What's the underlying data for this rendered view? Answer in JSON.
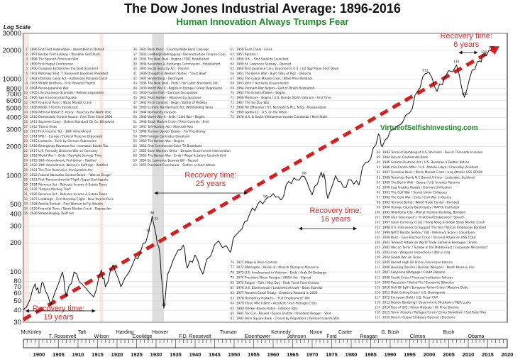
{
  "chart_data": {
    "type": "line",
    "title": "The Dow Jones Industrial Average: 1896-2016",
    "subtitle": "Human Innovation Always Trumps Fear",
    "ylabel": "Log Scale",
    "yscale": "log",
    "ylim": [
      30,
      30000
    ],
    "xlim": [
      1896,
      2020
    ],
    "yticks": [
      30,
      40,
      50,
      60,
      70,
      80,
      100,
      200,
      300,
      400,
      500,
      1000,
      2000,
      3000,
      4000,
      5000,
      6000,
      7000,
      8000,
      10000,
      20000,
      30000
    ],
    "xticks": [
      1900,
      1905,
      1910,
      1915,
      1920,
      1925,
      1930,
      1935,
      1940,
      1945,
      1950,
      1955,
      1960,
      1965,
      1970,
      1975,
      1980,
      1985,
      1990,
      1995,
      2000,
      2005,
      2010,
      2015,
      2020
    ],
    "series": [
      {
        "name": "DJIA",
        "color": "#111111",
        "x": [
          1896,
          1897,
          1899,
          1900,
          1901,
          1903,
          1906,
          1907,
          1909,
          1911,
          1914,
          1916,
          1917,
          1919,
          1921,
          1924,
          1926,
          1928,
          1929,
          1930,
          1931,
          1932,
          1933,
          1935,
          1937,
          1938,
          1940,
          1942,
          1943,
          1946,
          1949,
          1950,
          1952,
          1954,
          1956,
          1958,
          1960,
          1962,
          1964,
          1966,
          1968,
          1970,
          1972,
          1973,
          1974,
          1976,
          1978,
          1980,
          1982,
          1983,
          1985,
          1987,
          1988,
          1990,
          1992,
          1995,
          1997,
          1999,
          2000,
          2002,
          2004,
          2007,
          2009,
          2011,
          2013,
          2014,
          2016
        ],
        "y": [
          40,
          45,
          75,
          60,
          78,
          45,
          100,
          55,
          100,
          75,
          55,
          105,
          70,
          118,
          70,
          120,
          160,
          250,
          380,
          240,
          150,
          42,
          95,
          150,
          190,
          110,
          150,
          95,
          135,
          210,
          160,
          230,
          280,
          400,
          500,
          560,
          650,
          560,
          870,
          900,
          980,
          630,
          1000,
          1050,
          580,
          1000,
          760,
          900,
          800,
          1250,
          1500,
          2700,
          2000,
          2900,
          3300,
          4500,
          7500,
          11500,
          11700,
          7500,
          10500,
          14100,
          6500,
          12500,
          15500,
          17800,
          19800
        ]
      }
    ],
    "trendline": {
      "name": "Trend",
      "color": "#d71e1e",
      "x": [
        1896,
        2018
      ],
      "y": [
        32,
        22000
      ]
    },
    "recoveries": [
      {
        "label": "Recovery time:",
        "duration": "19 years",
        "x": [
          1896,
          1915
        ]
      },
      {
        "label": "Recovery time:",
        "duration": "25 years",
        "x": [
          1929,
          1954
        ]
      },
      {
        "label": "Recovery time:",
        "duration": "16 years",
        "x": [
          1966,
          1982
        ]
      },
      {
        "label": "Recovery time:",
        "duration": "6 years",
        "x": [
          2007,
          2013
        ]
      }
    ],
    "value_labels": [
      {
        "x": 1929,
        "y": 380,
        "text": "38"
      },
      {
        "x": 1930,
        "y": 330,
        "text": "33"
      },
      {
        "x": 1928,
        "y": 250,
        "text": "34"
      },
      {
        "x": 1932,
        "y": 42,
        "text": "42"
      },
      {
        "x": 1958,
        "y": 560,
        "text": "59"
      },
      {
        "x": 1968,
        "y": 980,
        "text": "68"
      },
      {
        "x": 1999,
        "y": 11500,
        "text": "111"
      },
      {
        "x": 2007,
        "y": 14100,
        "text": "115"
      },
      {
        "x": 2009,
        "y": 6500,
        "text": "109"
      },
      {
        "x": 2014,
        "y": 17800,
        "text": "120"
      },
      {
        "x": 2016,
        "y": 19800,
        "text": "121"
      }
    ],
    "presidents_top": [
      "McKinley",
      "T. Roosevelt",
      "Taft",
      "Wilson",
      "Harding",
      "Coolidge",
      "Hoover",
      "F.D. Roosevelt",
      "Truman",
      "Eisenhower",
      "Kennedy",
      "Johnson",
      "Nixon",
      "Ford",
      "Carter",
      "Reagan",
      "G. Bush",
      "Clinton",
      "Bush",
      "Obama"
    ],
    "website": "VirtueofSelfishInvesting.com"
  },
  "events": {
    "col1": [
      {
        "n": "1",
        "t": "1896 First Ford Automobile - Assembled in Detroit"
      },
      {
        "n": "2",
        "t": "1897 Boston First Subway / Klondike Gold Rush"
      },
      {
        "n": "3",
        "t": "1898 The Spanish American War"
      },
      {
        "n": "4",
        "t": "1899 First Hague Conference"
      },
      {
        "n": "5",
        "t": "1900 Congress Establishes the Gold Standard"
      },
      {
        "n": "6",
        "t": "1901 McKinley Shot, T. Roosevelt becomes President"
      },
      {
        "n": "7",
        "t": "1902 Isthmian Canal Act - Authorizes Panama Canal"
      },
      {
        "n": "8",
        "t": "1903 Wright Brothers - First Powered Flights"
      },
      {
        "n": "9",
        "t": "1904 Russo-Japanese War"
      },
      {
        "n": "10",
        "t": "1905 Life Insurance Scandals - Reform Legislation"
      },
      {
        "n": "11",
        "t": "1906 San Francisco Earthquake"
      },
      {
        "n": "12",
        "t": "1907 Financial Panic / Stock Market Crash"
      },
      {
        "n": "13",
        "t": "1908 Model T Ford is Introduced"
      },
      {
        "n": "14",
        "t": "1909 Admiral Robert E. Peary - Reaches the North Pole"
      },
      {
        "n": "15",
        "t": "1910 Democratic Control House - First Time Since 1894"
      },
      {
        "n": "16",
        "t": "1911 Supreme Court - Orders Standard Oil Co. Dissolved"
      },
      {
        "n": "17",
        "t": "1912 Titanic Sinks"
      },
      {
        "n": "18",
        "t": "1913 First Income Tax - 16th Amendment"
      },
      {
        "n": "19",
        "t": "1914 WW I - Europe / Federal Reserve Organized"
      },
      {
        "n": "20",
        "t": "1915 Lusitania - Sunk by German Submarine"
      },
      {
        "n": "21",
        "t": "1916 Emergency Revenue Act - Increases Estate Tax"
      },
      {
        "n": "22",
        "t": "1917 U.S. Formally Declares War on Germany"
      },
      {
        "n": "23",
        "t": "1918 World War I - Ends / Daylight Savings Time"
      },
      {
        "n": "24",
        "t": "1919 18th Amendment, Prohibition - Ratified"
      },
      {
        "n": "25",
        "t": "1920 19th Amendment, Women's Suffrage - Ratified"
      },
      {
        "n": "26",
        "t": "1921 The First Restrictive Immigration Act"
      },
      {
        "n": "27",
        "t": "1922 Federal Narcotics Control Board - \"War on Drugs\""
      },
      {
        "n": "28",
        "t": "1923 First Transcontinental Flight / Japan Earthquake"
      },
      {
        "n": "29",
        "t": "1924 Revenue Act - Reduces Income & Estate Taxes"
      },
      {
        "n": "30",
        "t": "1925 \"Scopes Monkey Trial\""
      },
      {
        "n": "31",
        "t": "1926 Revenue Act - Reduces Income & Estate Taxes"
      },
      {
        "n": "32",
        "t": "1927 Lindbergh - First Nonstop Flight - New York to Paris"
      },
      {
        "n": "33",
        "t": "1928 Amelia Earhart - First Woman to Fly Atlantic"
      },
      {
        "n": "34",
        "t": "1929 Financial Panic / Stock Market Crash - Depression"
      },
      {
        "n": "35",
        "t": "1930 Smoot-Hawley Tariff Act"
      }
    ],
    "col2": [
      {
        "n": "36",
        "t": "1931 Bank Panic - Country-Wide Bank Closings"
      },
      {
        "n": "37",
        "t": "1932 Lindbergh Kidnapping / Reconstruction Finance Corp"
      },
      {
        "n": "38",
        "t": "1933 The New Deal - Begins / FDIC Established"
      },
      {
        "n": "39",
        "t": "1934 Securities & Exchange Commission - Established"
      },
      {
        "n": "40",
        "t": "1935 Social Security Act - Passed"
      },
      {
        "n": "41",
        "t": "1936 Drought in Western States - \"Dust Bowl\""
      },
      {
        "n": "42",
        "t": "1937 Hindenburg - Destroyed"
      },
      {
        "n": "43",
        "t": "1938 The New Deal - Ends / Fair Labor Standards Act"
      },
      {
        "n": "44",
        "t": "1939 World War II - Begins in Europe / Great Depression"
      },
      {
        "n": "45",
        "t": "1940 France Falls - German Occupation"
      },
      {
        "n": "46",
        "t": "1941 Pearl Harbor - Attacked by Japanese"
      },
      {
        "n": "47",
        "t": "1942 Price Controls - Begin / Battle of Midway"
      },
      {
        "n": "48",
        "t": "1943 Current Tax Payment Act, Withholding Taxes"
      },
      {
        "n": "49",
        "t": "1944 Normandy Invasion"
      },
      {
        "n": "50",
        "t": "1945 World War II - Ends / Cold War - Begins"
      },
      {
        "n": "51",
        "t": "1946 Stock Market Crash / Price Controls - End"
      },
      {
        "n": "52",
        "t": "1947 Taft-Hartley Act / Marshall Plan"
      },
      {
        "n": "53",
        "t": "1948 Truman Upsets Dewey - For Presidency"
      },
      {
        "n": "54",
        "t": "1949 Foreign Comrades Devalued"
      },
      {
        "n": "55",
        "t": "1950 The Korean War - Begins"
      },
      {
        "n": "56",
        "t": "1951 First Commercial Color TV Broadcast"
      },
      {
        "n": "57",
        "t": "1952 Steel Workers Strike - Despite Government Intervention"
      },
      {
        "n": "58",
        "t": "1953 The Korean War - Ends / Wage & Salary Controls End"
      },
      {
        "n": "59",
        "t": "1954 St. Lawrence Seaway Bill - Passed"
      },
      {
        "n": "60",
        "t": "1955 President Eisenhower - Suffers a Heart Attack"
      }
    ],
    "col3": [
      {
        "n": "61",
        "t": "1956 Suez Canal - Crisis"
      },
      {
        "n": "62",
        "t": "1957 Sputnik I"
      },
      {
        "n": "63",
        "t": "1958 U.S. - First Satellite Launched"
      },
      {
        "n": "64",
        "t": "1959 St. Lawrence Seaway - Opened"
      },
      {
        "n": "65",
        "t": "1960 First Japanese Cars, Exported to U.S. / U2 Spy Plane Shot Down"
      },
      {
        "n": "66",
        "t": "1961 The Berlin Wall - Built / Bay of Pigs - Debacle"
      },
      {
        "n": "67",
        "t": "1962 The Cuban Missile Crisis / Steel Price Rollback"
      },
      {
        "n": "68",
        "t": "1963 John F. Kennedy Assassinated"
      },
      {
        "n": "69",
        "t": "1964 Vietnam War Begins - Gulf of Tonkin Resolution"
      },
      {
        "n": "70",
        "t": "1965 The Great Inflation - Begins"
      },
      {
        "n": "71",
        "t": "1966 Medicare - Begins / U.S. Bombs North Vietnam - First Time"
      },
      {
        "n": "72",
        "t": "1967 The Six Day War"
      },
      {
        "n": "73",
        "t": "1968 Tet Offensive / R.F. Kennedy & M.L. King - Assassinated"
      },
      {
        "n": "74",
        "t": "1969 Apollo 11 - U.S. on the Moon"
      },
      {
        "n": "75",
        "t": "1970 U.S. & South Vietnamese Invade Cambodia / Kent State"
      }
    ],
    "col4": [
      {
        "n": "76",
        "t": "1971 Wage & Price Controls"
      },
      {
        "n": "77",
        "t": "1972 Watergate - Break-in / Munich Olympics Massacre"
      },
      {
        "n": "78",
        "t": "1973 U.S. Involvement in Vietnam - Ends / Arab Oil Embargo"
      },
      {
        "n": "79",
        "t": "1974 President Nixon Resigns / ERISA Act - Signed"
      },
      {
        "n": "80",
        "t": "1975 Saigon - Falls / May Day - Ends Fixed Commissions"
      },
      {
        "n": "81",
        "t": "1976 U.S. Bicentennial / Lockheed Aircraft - Bribe Scandal"
      },
      {
        "n": "82",
        "t": "1977 Panama Canal Treaty - Ceded to Panama in 2000"
      },
      {
        "n": "83",
        "t": "1978 Humphrey Hawkins - \"Full Employment\" Bill"
      },
      {
        "n": "84",
        "t": "1979 Three Mile Island - Accident / Iran Hostage Crisis"
      },
      {
        "n": "85",
        "t": "1980 Volcker Raises Rates - Inflation Falls"
      },
      {
        "n": "86",
        "t": "1981 Tax Cut - Passed / Space Shuttle / President Reagan - Shot"
      },
      {
        "n": "87",
        "t": "1982 Penn Square Bank - Closed by Regulators / Falkland Islands War"
      }
    ],
    "col5": [
      {
        "n": "88",
        "t": "1983 Terrorist Bombing of U.S. Barracks - Beirut / Grenada Invasion"
      },
      {
        "n": "89",
        "t": "1984 Run on Continental Bank"
      },
      {
        "n": "90",
        "t": "1985 Gramm-Rudman Act / U.S. Becomes a Debtor Nation"
      },
      {
        "n": "91",
        "t": "1986 Iran-Contra Affair / U.S. Attacks Libya / Chernobyl Accident"
      },
      {
        "n": "92",
        "t": "1987 Financial Panic / Stock Market Crash / Iraq Attacks USS STARK"
      },
      {
        "n": "93",
        "t": "1988 Terrorists Bomb N.Y. Bound Airliner - Lockerbie, Scotland"
      },
      {
        "n": "94",
        "t": "1989 The Berlin Wall - Opens / U.S. Invades Panama"
      },
      {
        "n": "95",
        "t": "1990 Iraq Invades Kuwait / German Unification"
      },
      {
        "n": "96",
        "t": "1991 The Gulf War / Soviet Union Collapses"
      },
      {
        "n": "97",
        "t": "1992 The Cold War - Ends / Civil War in Bosnia"
      },
      {
        "n": "98",
        "t": "1993 Terrorist Bomb / World Trade Center - Bombed"
      },
      {
        "n": "99",
        "t": "1994 Orange County Bankruptcy / NAFTA Instituted"
      },
      {
        "n": "100",
        "t": "1995 Oklahoma City - Murrah Federal Building, Bombed"
      },
      {
        "n": "101",
        "t": "1996 Alan Greenspan's \"Irrational Exuberance\" Speech"
      },
      {
        "n": "102",
        "t": "1997 Asian Currency Crisis / Hong Kong & Global Stock Market Crash"
      },
      {
        "n": "103",
        "t": "1998 U.S. Intervenes to Support The Yen / African Embassies Bombed"
      },
      {
        "n": "104",
        "t": "1999 NATO Bombs Serbia / Y2K - Millenium Scare / Columbine"
      },
      {
        "n": "105",
        "t": "2000 Bush - Gore Election Crisis / Terrorist Attack on USS COLE"
      },
      {
        "n": "106",
        "t": "2001 Terrorist Attack on World Trade Center & Pentagon / Enron"
      },
      {
        "n": "107",
        "t": "2002 War on Terror / Turmoil in the Middle East / Corporate Misconduct"
      },
      {
        "n": "108",
        "t": "2003 Iraq - Weapons Inspections / War in Iraq"
      },
      {
        "n": "109",
        "t": "2004 Global War on Terror"
      },
      {
        "n": "110",
        "t": "2005 Record High Oil Prices / Hurricane Katrina"
      },
      {
        "n": "111",
        "t": "2006 Housing Decline / Nuclear Weapons - North Korea & Iran"
      },
      {
        "n": "112",
        "t": "2007 Subprime Mortgage / Credit Debacle"
      },
      {
        "n": "113",
        "t": "2008 Credit Crisis / Financial Institution Failures"
      },
      {
        "n": "114",
        "t": "2009 Recession / Swine Flu / Economic Stimulus"
      },
      {
        "n": "115",
        "t": "2010 Gulf Oil Spill / European Union Crisis / Massive Debt"
      },
      {
        "n": "116",
        "t": "2011 Debt Ceiling Crisis / U.S. Downgrade"
      },
      {
        "n": "117",
        "t": "2012 European Debt / U.S. Fiscal Cliff"
      },
      {
        "n": "118",
        "t": "2013 Boston Bombing / Government Shutdown / NSA Leaks"
      },
      {
        "n": "119",
        "t": "2014 Rise of ISIS / Police Protests / Oil Price Decline"
      },
      {
        "n": "120",
        "t": "2015 Terror Attacks / Refugee Crisis / China Slowdown / Fed Rate Hike"
      },
      {
        "n": "121",
        "t": "2016 Brexit / Cuban Embassy Opened / Elections"
      }
    ]
  }
}
